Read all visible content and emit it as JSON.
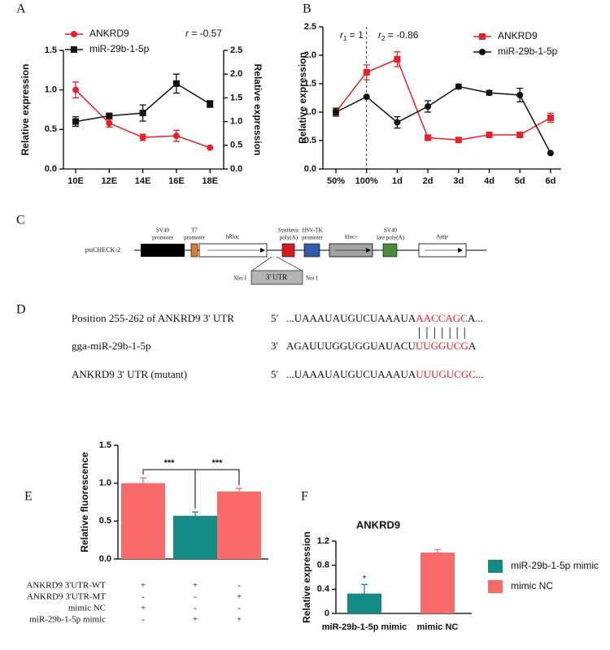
{
  "panel_labels": [
    "A",
    "B",
    "C",
    "D",
    "E",
    "F"
  ],
  "chart_data": [
    {
      "type": "line",
      "categories": [
        "10E",
        "12E",
        "14E",
        "16E",
        "18E"
      ],
      "y_label": "Relative expression",
      "y2_label": "Relative expression",
      "ylim": [
        0,
        1.5
      ],
      "yticks": [
        {
          "value": 0,
          "label": "0.0"
        },
        0.5,
        {
          "value": 1,
          "label": "1.0"
        },
        1.5
      ],
      "y2lim": [
        0,
        2.5
      ],
      "y2ticks": [
        {
          "value": 0,
          "label": "0.0"
        },
        0.5,
        {
          "value": 1,
          "label": "1.0"
        },
        1.5,
        {
          "value": 2,
          "label": "2.0"
        },
        2.5
      ],
      "annotations": [
        {
          "var": "r",
          "rest": " = -0.57"
        }
      ],
      "series": [
        {
          "name": "ANKRD9",
          "color": "#e8202a",
          "marker": "circle",
          "values": [
            1.0,
            0.58,
            0.4,
            0.42,
            0.27
          ],
          "errors": [
            0.1,
            0.05,
            0.04,
            0.07,
            0
          ]
        },
        {
          "name": "miR-29b-1-5p",
          "color": "#111111",
          "marker": "square",
          "axis": "y2",
          "values": [
            1.0,
            1.12,
            1.18,
            1.8,
            1.37
          ],
          "errors": [
            0.1,
            0.05,
            0.17,
            0.2,
            0.07
          ]
        }
      ]
    },
    {
      "type": "line",
      "categories": [
        "50%",
        "100%",
        "1d",
        "2d",
        "3d",
        "4d",
        "5d",
        "6d"
      ],
      "y_label": "Relative expression",
      "ylim": [
        0,
        2.5
      ],
      "yticks": [
        {
          "value": 0,
          "label": "0.0"
        },
        0.5,
        {
          "value": 1,
          "label": "1.0"
        },
        1.5,
        {
          "value": 2,
          "label": "2.0"
        },
        2.5
      ],
      "reference_line": "100%",
      "annotations": [
        {
          "var": "r",
          "sub": "1",
          "rest": " = 1"
        },
        {
          "var": "r",
          "sub": "2",
          "rest": " = -0.86"
        }
      ],
      "series": [
        {
          "name": "ANKRD9",
          "color": "#e8202a",
          "marker": "square",
          "values": [
            1.0,
            1.7,
            1.93,
            0.55,
            0.51,
            0.6,
            0.6,
            0.9
          ],
          "errors": [
            0.07,
            0.13,
            0.13,
            0.05,
            0.04,
            0.02,
            0.04,
            0.08
          ]
        },
        {
          "name": "miR-29b-1-5p",
          "color": "#111111",
          "marker": "circle",
          "values": [
            1.0,
            1.27,
            0.82,
            1.1,
            1.45,
            1.34,
            1.3,
            0.28
          ],
          "errors": [
            0.07,
            0,
            0.1,
            0.1,
            0.04,
            0.04,
            0.12,
            0
          ]
        }
      ]
    },
    {
      "type": "bar",
      "y_label": "Relative fluorescence",
      "ylim": [
        0,
        1.5
      ],
      "yticks": [
        {
          "value": 0,
          "label": "0.0"
        },
        0.5,
        {
          "value": 1,
          "label": "1.0"
        },
        1.5
      ],
      "values": [
        1.0,
        0.57,
        0.89
      ],
      "errors": [
        0.07,
        0.05,
        0.04
      ],
      "colors": [
        "#f96a6a",
        "#138a84",
        "#f96a6a"
      ],
      "significance": [
        "***",
        "***"
      ],
      "conditions": [
        {
          "label": "ANKRD9 3'UTR-WT",
          "signs": [
            "+",
            "+",
            "-"
          ]
        },
        {
          "label": "ANKRD9 3'UTR-MT",
          "signs": [
            "-",
            "-",
            "+"
          ]
        },
        {
          "label": "mimic NC",
          "signs": [
            "+",
            "-",
            "-"
          ]
        },
        {
          "label": "miR-29b-1-5p mimic",
          "signs": [
            "-",
            "+",
            "+"
          ]
        }
      ]
    },
    {
      "type": "bar",
      "title": "ANKRD9",
      "y_label": "Relative expression",
      "categories": [
        "miR-29b-1-5p mimic",
        "mimic NC"
      ],
      "ylim": [
        0,
        1.2
      ],
      "yticks": [
        0,
        0.4,
        0.8,
        1.2
      ],
      "values": [
        0.33,
        1.01
      ],
      "errors": [
        0.15,
        0.05
      ],
      "colors": [
        "#138a84",
        "#f96a6a"
      ],
      "significance": [
        "*"
      ],
      "legend": true
    }
  ],
  "vector_map": {
    "name": "psiCHECK-2",
    "features": [
      [
        "SV40",
        "promoter"
      ],
      [
        "T7",
        "promoter"
      ],
      [
        "hRluc"
      ],
      [
        "Synthetic",
        "poly(A)"
      ],
      [
        "HSV-TK",
        "promoter"
      ],
      [
        "hluc+"
      ],
      [
        "SV40",
        "late poly(A)"
      ],
      [
        "Ampʳ"
      ]
    ],
    "insert": {
      "left": "Xho I",
      "label": "3' UTR",
      "right": "Not I"
    }
  },
  "alignment": {
    "rows": [
      {
        "label": "Position 255-262 of ANKRD9 3' UTR",
        "end": "5'",
        "seq": "...UAAAUAUGUCUAAAUA",
        "site": "AACCAGC",
        "tail": "A..."
      },
      {
        "label": "gga-miR-29b-1-5p",
        "end": "3'",
        "seq": "AGAUUUGGUGGUAUACU",
        "site": "UUGGUCG",
        "tail": "A"
      },
      {
        "label": "ANKRD9 3' UTR (mutant)",
        "end": "5'",
        "seq": "...UAAAUAUGUCUAAAUA",
        "site": "UUUGUCGC",
        "tail": "..."
      }
    ]
  }
}
